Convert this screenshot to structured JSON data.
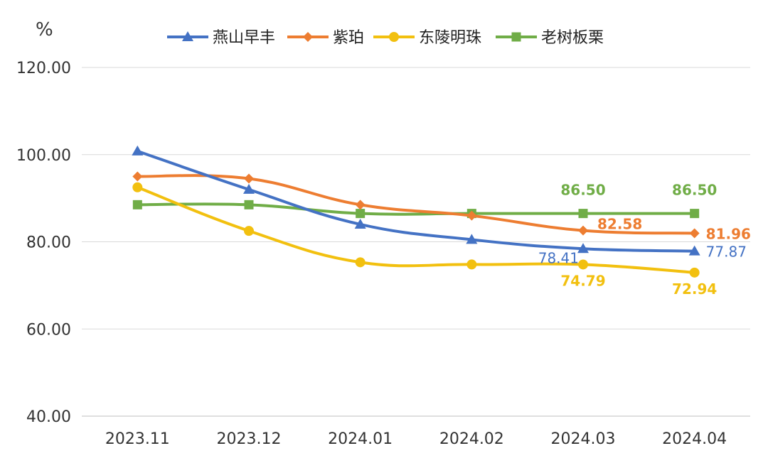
{
  "chart_data": {
    "type": "line",
    "unit_label": "%",
    "categories": [
      "2023.11",
      "2023.12",
      "2024.01",
      "2024.02",
      "2024.03",
      "2024.04"
    ],
    "ylim": [
      40,
      120
    ],
    "yticks": [
      "40.00",
      "60.00",
      "80.00",
      "100.00",
      "120.00"
    ],
    "grid": true,
    "legend_position": "top",
    "series": [
      {
        "name": "燕山早丰",
        "color": "#4472C4",
        "marker": "triangle",
        "values": [
          100.8,
          92.0,
          84.0,
          80.5,
          78.41,
          77.87
        ],
        "labels": [
          {
            "index": 4,
            "text": "78.41",
            "pos": "left"
          },
          {
            "index": 5,
            "text": "77.87",
            "pos": "right"
          }
        ]
      },
      {
        "name": "紫珀",
        "color": "#ED7D31",
        "marker": "diamond",
        "values": [
          95.0,
          94.5,
          88.5,
          86.0,
          82.58,
          81.96
        ],
        "labels": [
          {
            "index": 4,
            "text": "82.58",
            "pos": "upper-right"
          },
          {
            "index": 5,
            "text": "81.96",
            "pos": "right"
          }
        ]
      },
      {
        "name": "东陵明珠",
        "color": "#F2C00F",
        "marker": "circle",
        "values": [
          92.5,
          82.5,
          75.3,
          74.8,
          74.79,
          72.94
        ],
        "labels": [
          {
            "index": 4,
            "text": "74.79",
            "pos": "below"
          },
          {
            "index": 5,
            "text": "72.94",
            "pos": "below"
          }
        ]
      },
      {
        "name": "老树板栗",
        "color": "#70AD47",
        "marker": "square",
        "values": [
          88.5,
          88.5,
          86.5,
          86.5,
          86.5,
          86.5
        ],
        "labels": [
          {
            "index": 4,
            "text": "86.50",
            "pos": "above"
          },
          {
            "index": 5,
            "text": "86.50",
            "pos": "above"
          }
        ]
      }
    ]
  }
}
